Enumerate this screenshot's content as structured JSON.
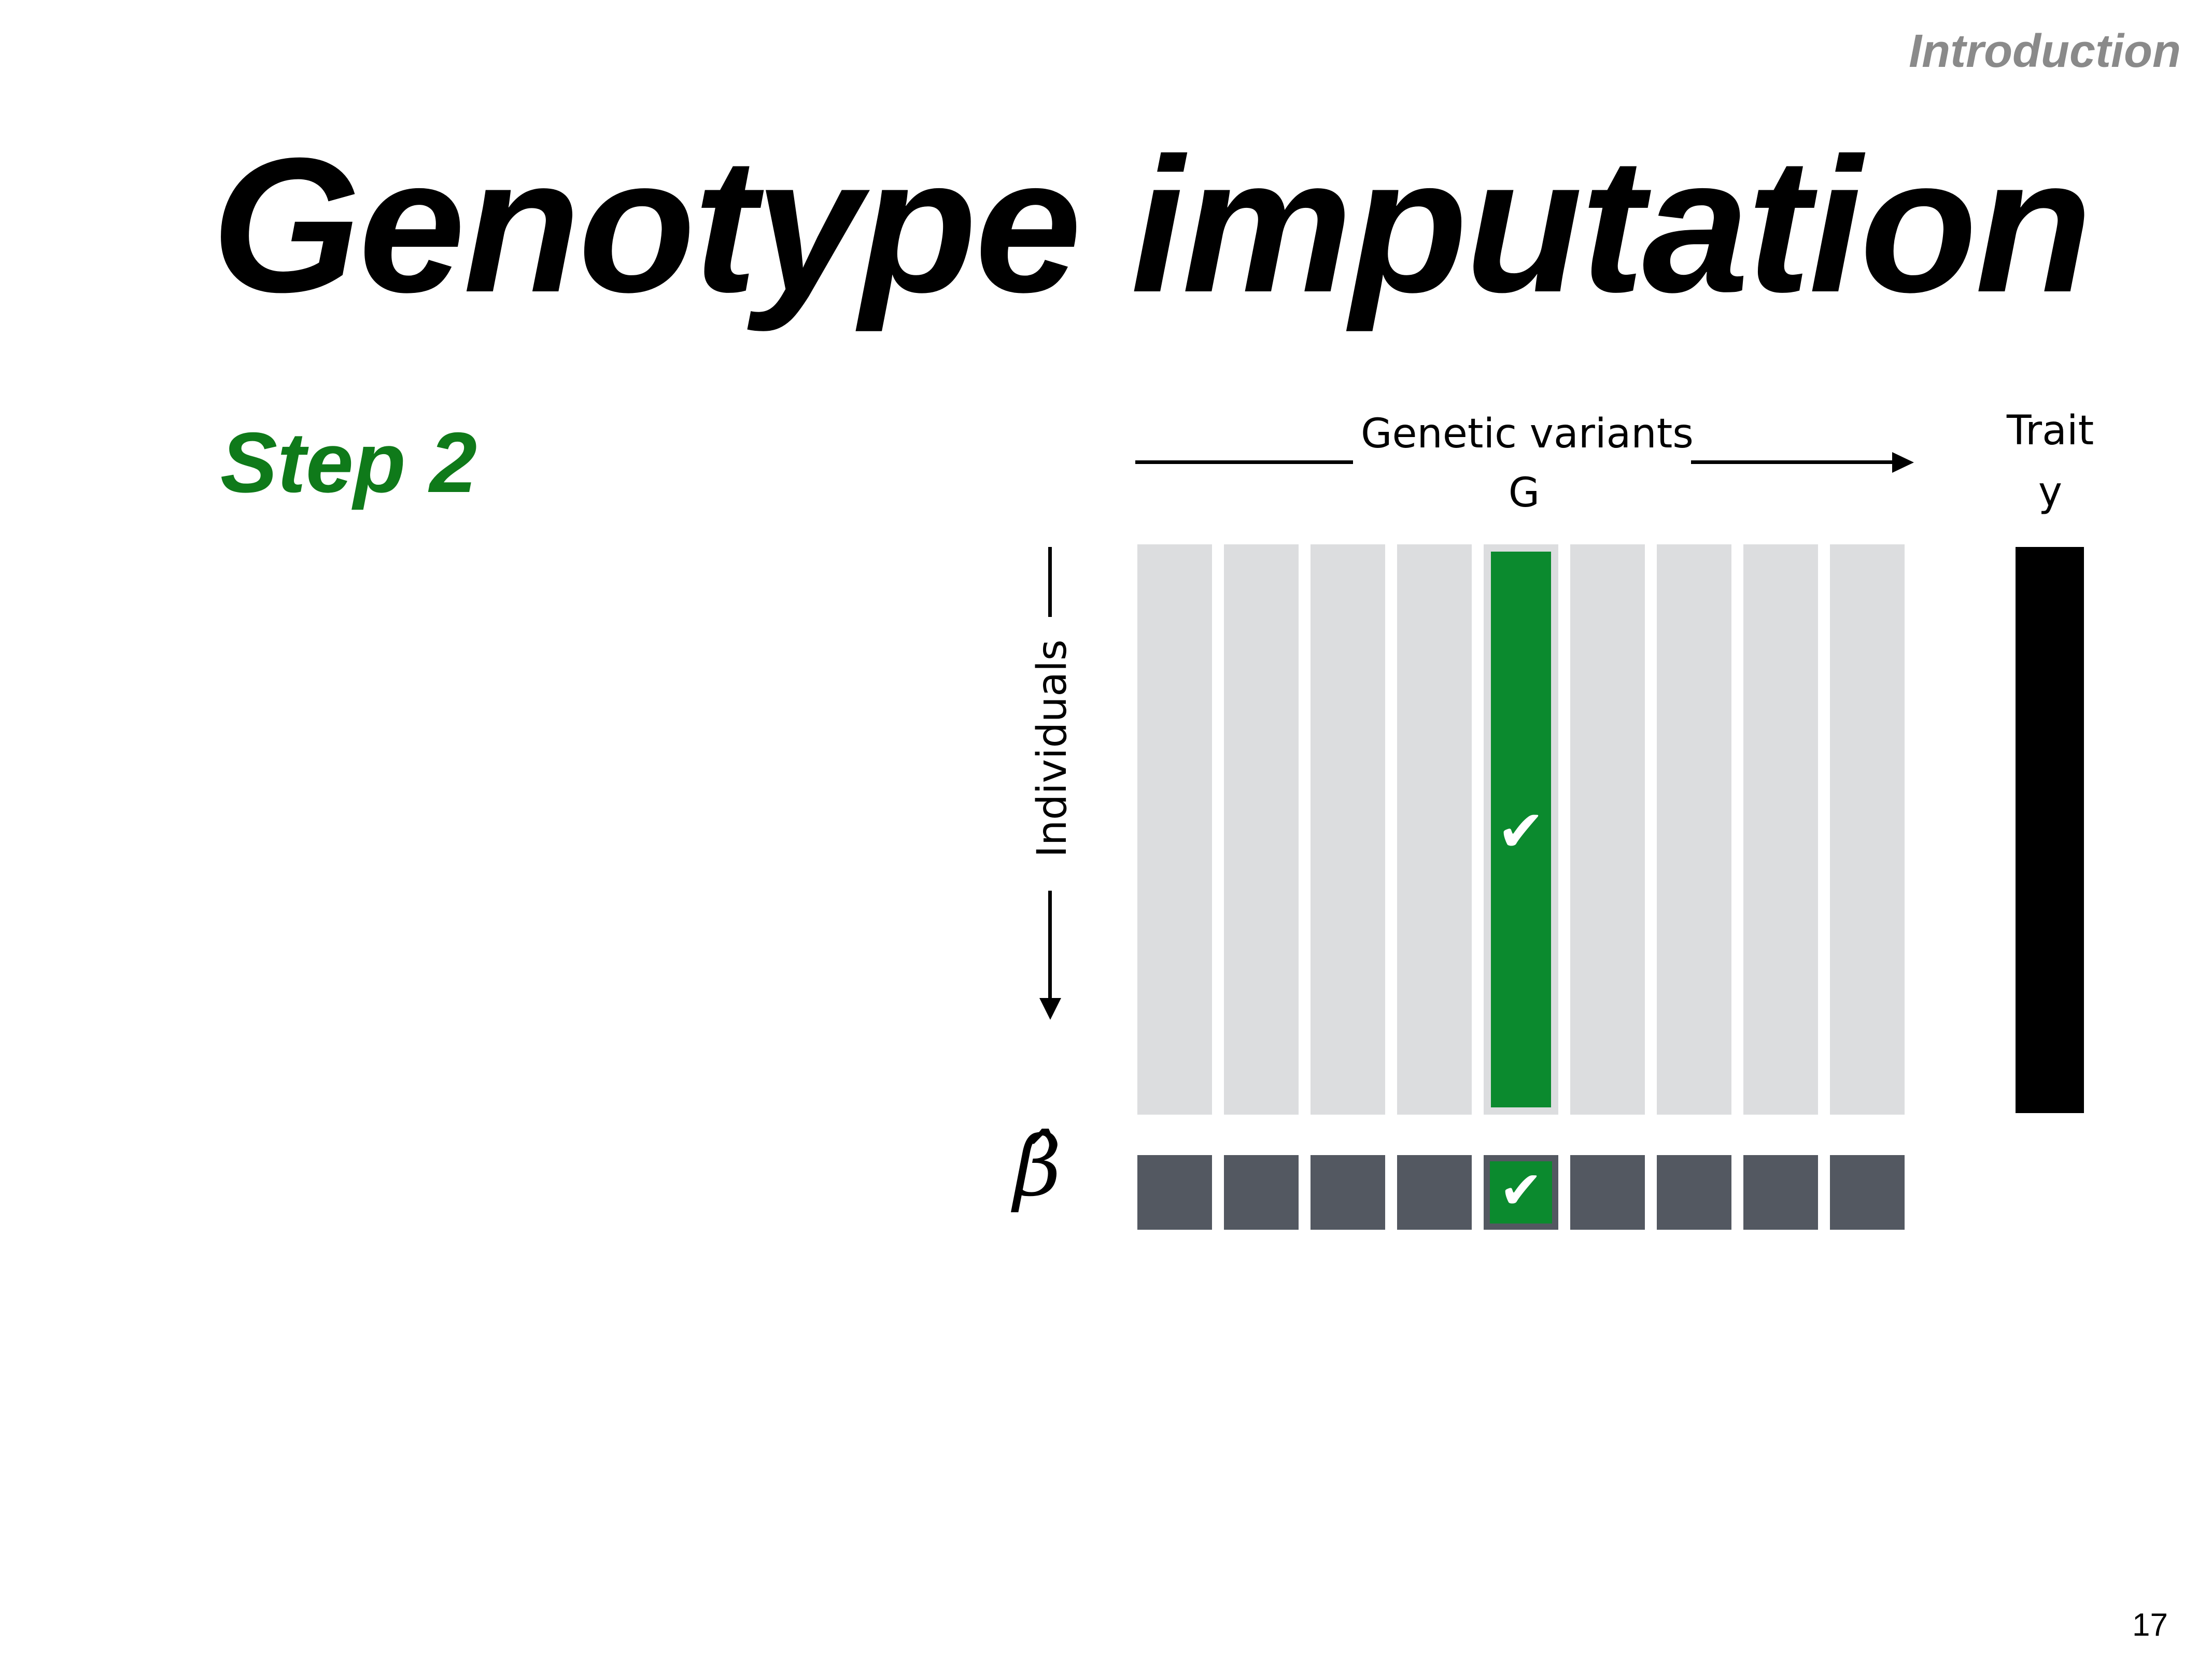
{
  "slide": {
    "section": "Introduction",
    "title": "Genotype imputation",
    "step": "Step 2",
    "page_number": "17"
  },
  "diagram": {
    "variants_label": "Genetic variants",
    "matrix_label": "G",
    "trait_label": "Trait",
    "trait_symbol": "y",
    "individuals_label": "Individuals",
    "beta_symbol": "β̂",
    "check_glyph": "✔",
    "variant_count": 9,
    "selected_variant_index": 5,
    "colors": {
      "cell": "#dcdddf",
      "beta_cell": "#535861",
      "selected": "#0b8a2e",
      "step_label": "#0f7a1a",
      "section_label": "#8a8a8a",
      "trait_bar": "#000000"
    }
  }
}
